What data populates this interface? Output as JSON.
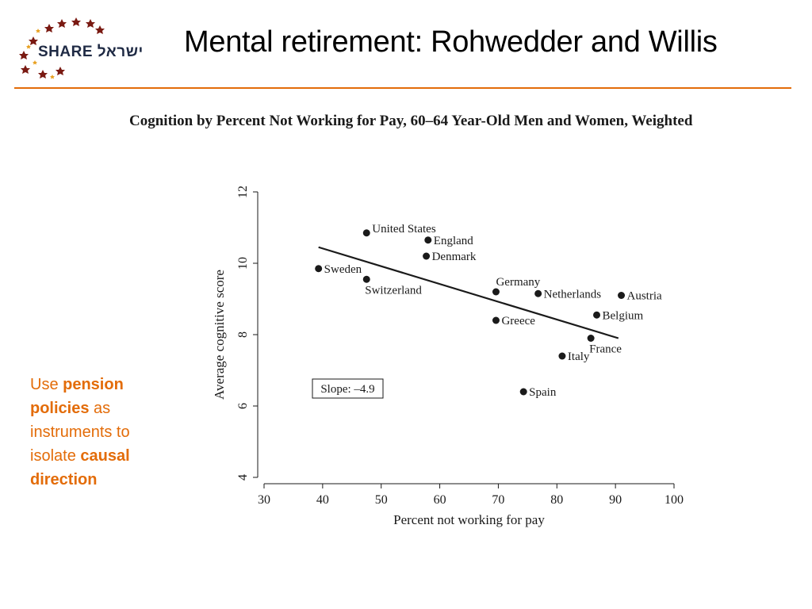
{
  "header": {
    "title": "Mental retirement: Rohwedder and Willis",
    "logo_text": "SHARE ישראל"
  },
  "side_note": {
    "parts": [
      {
        "text": "Use ",
        "bold": false
      },
      {
        "text": "pension policies",
        "bold": true
      },
      {
        "text": " as instruments to isolate ",
        "bold": false
      },
      {
        "text": "causal direction",
        "bold": true
      }
    ]
  },
  "colors": {
    "accent": "#e36c09",
    "ink": "#1a1a1a"
  },
  "chart_data": {
    "type": "scatter",
    "title": "Cognition by Percent Not Working for Pay, 60–64 Year-Old Men and Women, Weighted",
    "xlabel": "Percent not working for pay",
    "ylabel": "Average cognitive score",
    "xlim": [
      30,
      100
    ],
    "ylim": [
      4,
      12
    ],
    "xticks": [
      30,
      40,
      50,
      60,
      70,
      80,
      90,
      100
    ],
    "yticks": [
      4,
      6,
      8,
      10,
      12
    ],
    "grid": false,
    "legend": "none",
    "points": [
      {
        "label": "United States",
        "x": 47.5,
        "y": 10.85,
        "label_pos": "right-up"
      },
      {
        "label": "England",
        "x": 58,
        "y": 10.65,
        "label_pos": "right"
      },
      {
        "label": "Denmark",
        "x": 57.7,
        "y": 10.2,
        "label_pos": "right"
      },
      {
        "label": "Sweden",
        "x": 39.3,
        "y": 9.85,
        "label_pos": "right"
      },
      {
        "label": "Switzerland",
        "x": 47.5,
        "y": 9.55,
        "label_pos": "below"
      },
      {
        "label": "Germany",
        "x": 69.6,
        "y": 9.2,
        "label_pos": "above"
      },
      {
        "label": "Netherlands",
        "x": 76.8,
        "y": 9.15,
        "label_pos": "right"
      },
      {
        "label": "Austria",
        "x": 91,
        "y": 9.1,
        "label_pos": "right"
      },
      {
        "label": "Belgium",
        "x": 86.8,
        "y": 8.55,
        "label_pos": "right"
      },
      {
        "label": "Greece",
        "x": 69.6,
        "y": 8.4,
        "label_pos": "right"
      },
      {
        "label": "France",
        "x": 85.8,
        "y": 7.9,
        "label_pos": "below"
      },
      {
        "label": "Italy",
        "x": 80.9,
        "y": 7.4,
        "label_pos": "right"
      },
      {
        "label": "Spain",
        "x": 74.3,
        "y": 6.4,
        "label_pos": "right"
      }
    ],
    "fit_line": {
      "x1": 39.3,
      "y1": 10.45,
      "x2": 90.5,
      "y2": 7.9
    },
    "annotation": "Slope: –4.9"
  }
}
